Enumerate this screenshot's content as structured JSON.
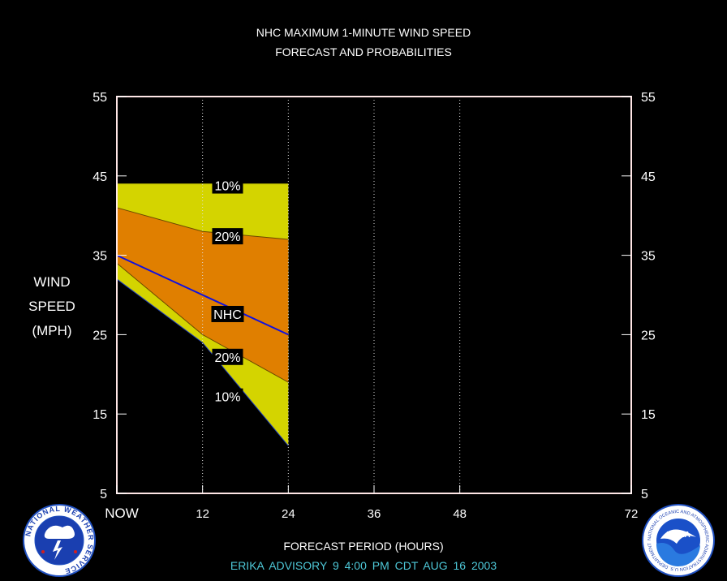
{
  "title_line1": "NHC MAXIMUM 1-MINUTE WIND SPEED",
  "title_line2": "FORECAST AND PROBABILITIES",
  "ylabel_lines": [
    "WIND",
    "SPEED",
    "(MPH)"
  ],
  "xlabel": "FORECAST PERIOD (HOURS)",
  "advisory": "ERIKA   ADVISORY  9  4:00  PM  CDT  AUG  16  2003",
  "logos": {
    "left": "NATIONAL WEATHER SERVICE",
    "right": "NOAA",
    "right_ring": "NATIONAL OCEANIC AND ATMOSPHERIC ADMINISTRATION U.S. DEPARTMENT OF COMMERCE"
  },
  "chart_data": {
    "type": "area",
    "x_ticks": [
      {
        "x": 0,
        "label": "NOW"
      },
      {
        "x": 12,
        "label": "12"
      },
      {
        "x": 24,
        "label": "24"
      },
      {
        "x": 36,
        "label": "36"
      },
      {
        "x": 48,
        "label": "48"
      },
      {
        "x": 72,
        "label": "72"
      }
    ],
    "y_ticks": [
      5,
      15,
      25,
      35,
      45,
      55
    ],
    "xlim": [
      0,
      72
    ],
    "ylim": [
      5,
      55
    ],
    "x": [
      0,
      12,
      24
    ],
    "series": [
      {
        "name": "10%",
        "band": "upper",
        "values": [
          44,
          44,
          44
        ]
      },
      {
        "name": "20%",
        "band": "upper",
        "values": [
          41,
          38,
          37
        ]
      },
      {
        "name": "NHC",
        "values": [
          35,
          30,
          25
        ]
      },
      {
        "name": "20%",
        "band": "lower",
        "values": [
          34,
          25,
          19
        ]
      },
      {
        "name": "10%",
        "band": "lower",
        "values": [
          32,
          24,
          11
        ]
      }
    ],
    "labels": [
      {
        "text": "10%",
        "x": 15.5,
        "y": 43.8
      },
      {
        "text": "20%",
        "x": 15.5,
        "y": 37.4
      },
      {
        "text": "NHC",
        "x": 15.5,
        "y": 27.6
      },
      {
        "text": "20%",
        "x": 15.5,
        "y": 22.2
      },
      {
        "text": "10%",
        "x": 15.5,
        "y": 17.2
      }
    ],
    "colors": {
      "outer_band": "#d4d400",
      "inner_band": "#e07f00",
      "nhc_line": "#1010e0",
      "frame": "#ffe6e6"
    }
  }
}
